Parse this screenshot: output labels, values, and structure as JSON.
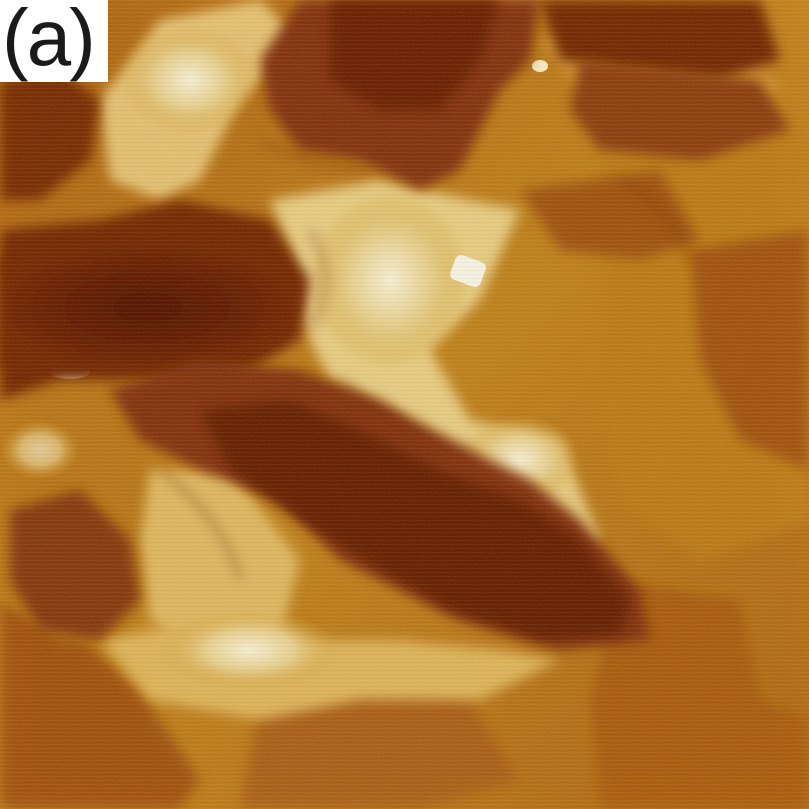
{
  "figure": {
    "panel_label": "(a)"
  },
  "image": {
    "description_type": "scanning-probe-topography",
    "colors": {
      "deep": "#5a1500",
      "dark": "#7a2a05",
      "mid_dark": "#954009",
      "mid": "#b5660f",
      "mid_light": "#c98a1c",
      "light": "#dba83b",
      "pale": "#f0d690",
      "highlight": "#fff7da"
    }
  }
}
